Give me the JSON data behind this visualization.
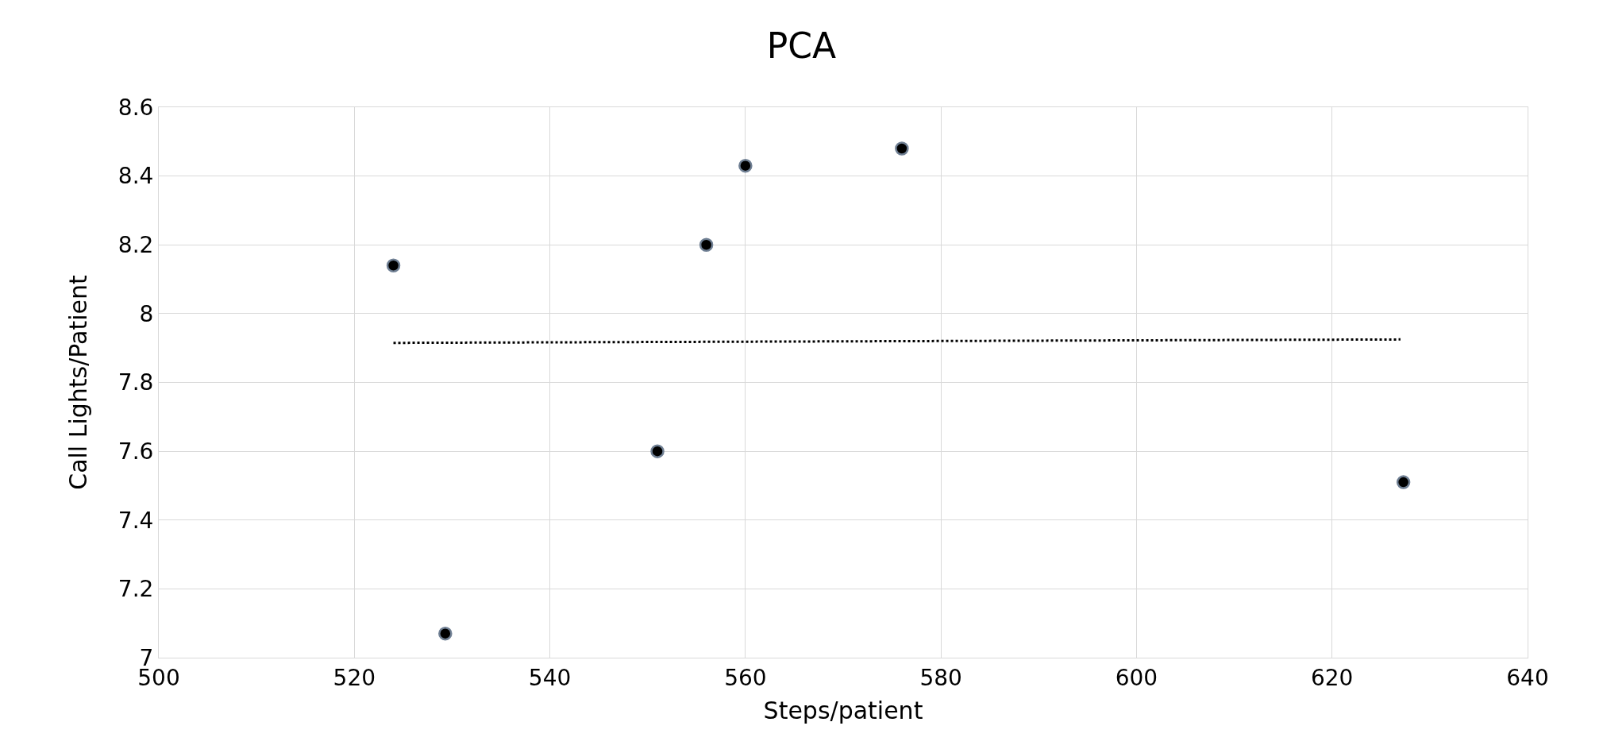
{
  "chart_data": {
    "type": "scatter",
    "title": "PCA",
    "xlabel": "Steps/patient",
    "ylabel": "Call Lights/Patient",
    "series": [
      {
        "color": "#000000",
        "marker": "circle",
        "x": [
          524,
          529.3,
          551,
          556,
          560,
          576,
          627.3
        ],
        "values": [
          8.14,
          7.07,
          7.6,
          8.2,
          8.43,
          8.48,
          7.51
        ]
      },
      {
        "type": "line",
        "color": "#000000",
        "line_style": "dotted",
        "marker": "none",
        "x": [
          524,
          627
        ],
        "values": [
          7.915,
          7.925
        ]
      }
    ],
    "xlim": [
      500,
      640
    ],
    "xticks": [
      500,
      520,
      540,
      560,
      580,
      600,
      620,
      640
    ],
    "ylim": [
      7,
      8.6
    ],
    "yticks": [
      7,
      7.2,
      7.4,
      7.6,
      7.8,
      8,
      8.2,
      8.4,
      8.6
    ],
    "grid": true
  }
}
